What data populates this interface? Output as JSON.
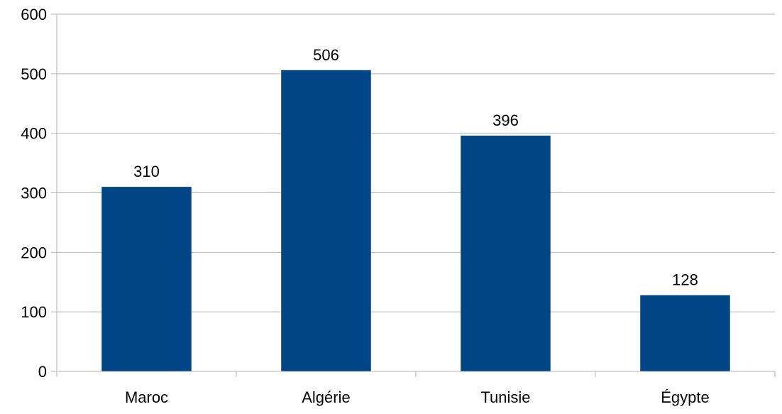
{
  "chart_data": {
    "type": "bar",
    "categories": [
      "Maroc",
      "Algérie",
      "Tunisie",
      "Égypte"
    ],
    "values": [
      310,
      506,
      396,
      128
    ],
    "data_labels": [
      "310",
      "506",
      "396",
      "128"
    ],
    "title": "",
    "xlabel": "",
    "ylabel": "",
    "ylim": [
      0,
      600
    ],
    "yticks": [
      0,
      100,
      200,
      300,
      400,
      500,
      600
    ],
    "grid": true,
    "legend": "none",
    "bar_color": "#004586",
    "grid_color": "#b3b3b3"
  }
}
